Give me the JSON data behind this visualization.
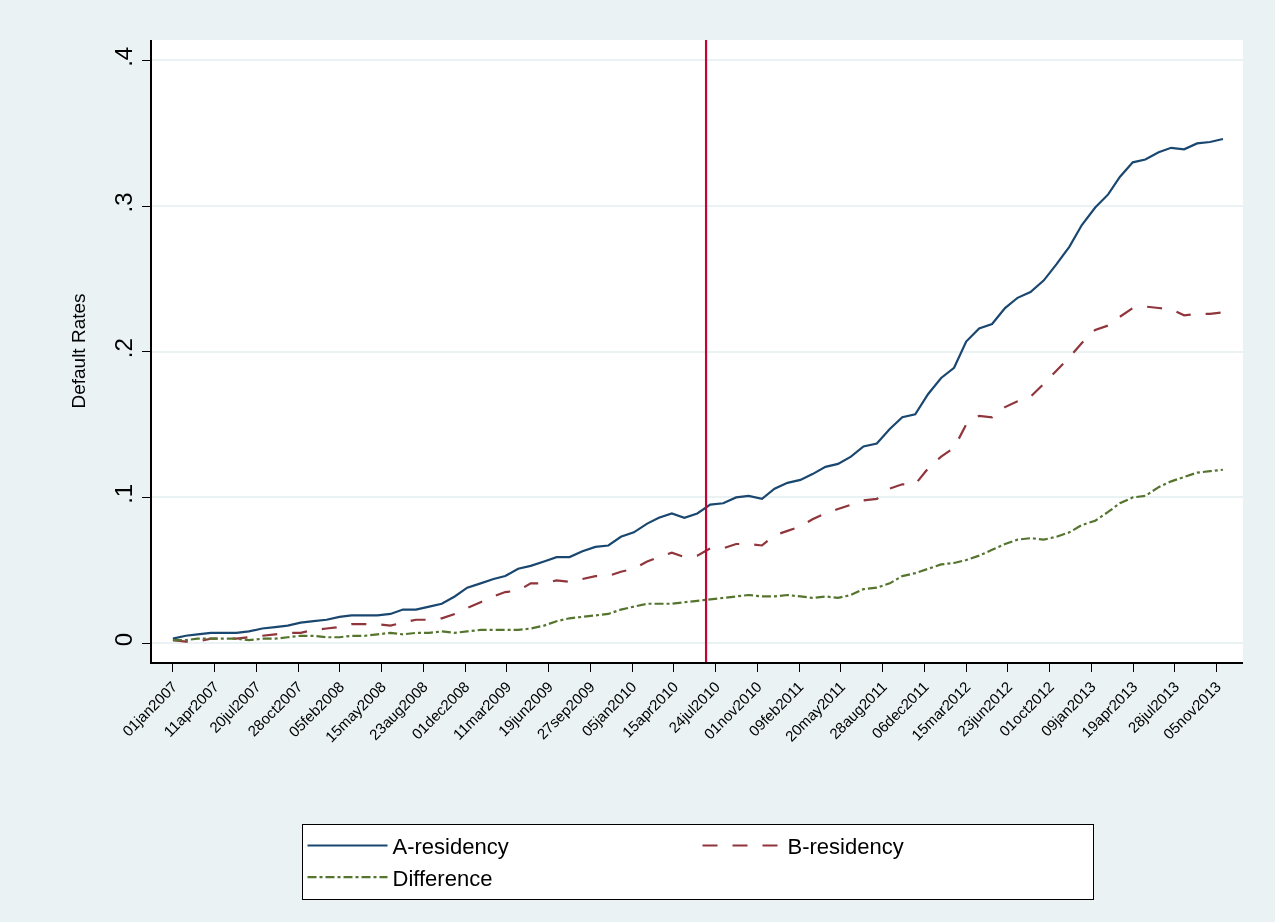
{
  "chart_data": {
    "type": "line",
    "ylabel": "Default Rates",
    "x": [
      "2007-01-01",
      "2007-02-01",
      "2007-03-01",
      "2007-04-02",
      "2007-05-02",
      "2007-06-02",
      "2007-07-02",
      "2007-08-03",
      "2007-09-03",
      "2007-10-03",
      "2007-11-03",
      "2007-12-04",
      "2008-01-04",
      "2008-02-04",
      "2008-03-04",
      "2008-04-04",
      "2008-05-05",
      "2008-06-05",
      "2008-07-05",
      "2008-08-05",
      "2008-09-06",
      "2008-10-06",
      "2008-11-06",
      "2008-12-06",
      "2009-01-07",
      "2009-02-07",
      "2009-03-07",
      "2009-04-07",
      "2009-05-07",
      "2009-06-08",
      "2009-07-08",
      "2009-08-08",
      "2009-09-08",
      "2009-10-09",
      "2009-11-09",
      "2009-12-09",
      "2010-01-09",
      "2010-02-10",
      "2010-03-10",
      "2010-04-10",
      "2010-05-10",
      "2010-06-10",
      "2010-07-11",
      "2010-08-11",
      "2010-09-11",
      "2010-10-11",
      "2010-11-12",
      "2010-12-12",
      "2011-01-12",
      "2011-02-12",
      "2011-03-13",
      "2011-04-13",
      "2011-05-13",
      "2011-06-13",
      "2011-07-13",
      "2011-08-14",
      "2011-09-14",
      "2011-10-14",
      "2011-11-14",
      "2011-12-15",
      "2012-01-15",
      "2012-02-15",
      "2012-03-15",
      "2012-04-15",
      "2012-05-16",
      "2012-06-16",
      "2012-07-16",
      "2012-08-16",
      "2012-09-17",
      "2012-10-17",
      "2012-11-17",
      "2012-12-17",
      "2013-01-18",
      "2013-02-18",
      "2013-03-18",
      "2013-04-18",
      "2013-05-18",
      "2013-06-19",
      "2013-07-19",
      "2013-08-19",
      "2013-09-19",
      "2013-10-20",
      "2013-11-20"
    ],
    "series": [
      {
        "name": "A-residency",
        "color": "#1a476f",
        "line_style": "solid",
        "values": [
          0.003,
          0.005,
          0.006,
          0.007,
          0.007,
          0.007,
          0.008,
          0.01,
          0.011,
          0.012,
          0.014,
          0.015,
          0.016,
          0.018,
          0.019,
          0.019,
          0.019,
          0.02,
          0.023,
          0.023,
          0.025,
          0.027,
          0.032,
          0.038,
          0.041,
          0.044,
          0.046,
          0.051,
          0.053,
          0.056,
          0.059,
          0.059,
          0.063,
          0.066,
          0.067,
          0.073,
          0.076,
          0.082,
          0.086,
          0.089,
          0.086,
          0.089,
          0.095,
          0.096,
          0.1,
          0.101,
          0.099,
          0.106,
          0.11,
          0.112,
          0.116,
          0.121,
          0.123,
          0.128,
          0.135,
          0.137,
          0.147,
          0.155,
          0.157,
          0.171,
          0.182,
          0.189,
          0.207,
          0.216,
          0.219,
          0.23,
          0.237,
          0.241,
          0.249,
          0.26,
          0.272,
          0.287,
          0.299,
          0.308,
          0.32,
          0.33,
          0.332,
          0.337,
          0.34,
          0.339,
          0.343,
          0.344,
          0.346
        ]
      },
      {
        "name": "B-residency",
        "color": "#90353b",
        "line_style": "dashed",
        "values": [
          0.002,
          0.001,
          0.001,
          0.003,
          0.003,
          0.003,
          0.004,
          0.005,
          0.006,
          0.007,
          0.007,
          0.009,
          0.01,
          0.011,
          0.013,
          0.013,
          0.013,
          0.012,
          0.014,
          0.016,
          0.016,
          0.017,
          0.02,
          0.024,
          0.028,
          0.032,
          0.035,
          0.036,
          0.041,
          0.041,
          0.043,
          0.042,
          0.044,
          0.046,
          0.046,
          0.049,
          0.051,
          0.056,
          0.059,
          0.062,
          0.059,
          0.06,
          0.065,
          0.065,
          0.068,
          0.068,
          0.067,
          0.074,
          0.077,
          0.08,
          0.085,
          0.089,
          0.092,
          0.095,
          0.098,
          0.099,
          0.106,
          0.109,
          0.109,
          0.12,
          0.128,
          0.134,
          0.15,
          0.156,
          0.155,
          0.162,
          0.166,
          0.169,
          0.178,
          0.187,
          0.196,
          0.206,
          0.215,
          0.218,
          0.224,
          0.23,
          0.231,
          0.23,
          0.229,
          0.225,
          0.226,
          0.226,
          0.227
        ]
      },
      {
        "name": "Difference",
        "color": "#55752f",
        "line_style": "dotted",
        "values": [
          0.002,
          0.002,
          0.003,
          0.003,
          0.003,
          0.003,
          0.002,
          0.003,
          0.003,
          0.004,
          0.005,
          0.005,
          0.004,
          0.004,
          0.005,
          0.005,
          0.006,
          0.007,
          0.006,
          0.007,
          0.007,
          0.008,
          0.007,
          0.008,
          0.009,
          0.009,
          0.009,
          0.009,
          0.01,
          0.012,
          0.015,
          0.017,
          0.018,
          0.019,
          0.02,
          0.023,
          0.025,
          0.027,
          0.027,
          0.027,
          0.028,
          0.029,
          0.03,
          0.031,
          0.032,
          0.033,
          0.032,
          0.032,
          0.033,
          0.032,
          0.031,
          0.032,
          0.031,
          0.033,
          0.037,
          0.038,
          0.041,
          0.046,
          0.048,
          0.051,
          0.054,
          0.055,
          0.057,
          0.06,
          0.064,
          0.068,
          0.071,
          0.072,
          0.071,
          0.073,
          0.076,
          0.081,
          0.084,
          0.09,
          0.096,
          0.1,
          0.101,
          0.107,
          0.111,
          0.114,
          0.117,
          0.118,
          0.119
        ]
      }
    ],
    "xlim": [
      "2006-11-12",
      "2014-01-07"
    ],
    "xticks": [
      {
        "value": "2007-01-01",
        "label": "01jan2007"
      },
      {
        "value": "2007-04-11",
        "label": "11apr2007"
      },
      {
        "value": "2007-07-20",
        "label": "20jul2007"
      },
      {
        "value": "2007-10-28",
        "label": "28oct2007"
      },
      {
        "value": "2008-02-05",
        "label": "05feb2008"
      },
      {
        "value": "2008-05-15",
        "label": "15may2008"
      },
      {
        "value": "2008-08-23",
        "label": "23aug2008"
      },
      {
        "value": "2008-12-01",
        "label": "01dec2008"
      },
      {
        "value": "2009-03-11",
        "label": "11mar2009"
      },
      {
        "value": "2009-06-19",
        "label": "19jun2009"
      },
      {
        "value": "2009-09-27",
        "label": "27sep2009"
      },
      {
        "value": "2010-01-05",
        "label": "05jan2010"
      },
      {
        "value": "2010-04-15",
        "label": "15apr2010"
      },
      {
        "value": "2010-07-24",
        "label": "24jul2010"
      },
      {
        "value": "2010-11-01",
        "label": "01nov2010"
      },
      {
        "value": "2011-02-09",
        "label": "09feb2011"
      },
      {
        "value": "2011-05-20",
        "label": "20may2011"
      },
      {
        "value": "2011-08-28",
        "label": "28aug2011"
      },
      {
        "value": "2011-12-06",
        "label": "06dec2011"
      },
      {
        "value": "2012-03-15",
        "label": "15mar2012"
      },
      {
        "value": "2012-06-23",
        "label": "23jun2012"
      },
      {
        "value": "2012-10-01",
        "label": "01oct2012"
      },
      {
        "value": "2013-01-09",
        "label": "09jan2013"
      },
      {
        "value": "2013-04-19",
        "label": "19apr2013"
      },
      {
        "value": "2013-07-28",
        "label": "28jul2013"
      },
      {
        "value": "2013-11-05",
        "label": "05nov2013"
      }
    ],
    "ylim": [
      -0.013,
      0.414
    ],
    "yticks": [
      {
        "value": 0,
        "label": "0"
      },
      {
        "value": 0.1,
        "label": ".1"
      },
      {
        "value": 0.2,
        "label": ".2"
      },
      {
        "value": 0.3,
        "label": ".3"
      },
      {
        "value": 0.4,
        "label": ".4"
      }
    ],
    "ref_lines": [
      {
        "axis": "x",
        "value": "2010-07-01",
        "color": "#c10534"
      }
    ],
    "grid": "y",
    "legend": "bottom",
    "marker": "none"
  }
}
